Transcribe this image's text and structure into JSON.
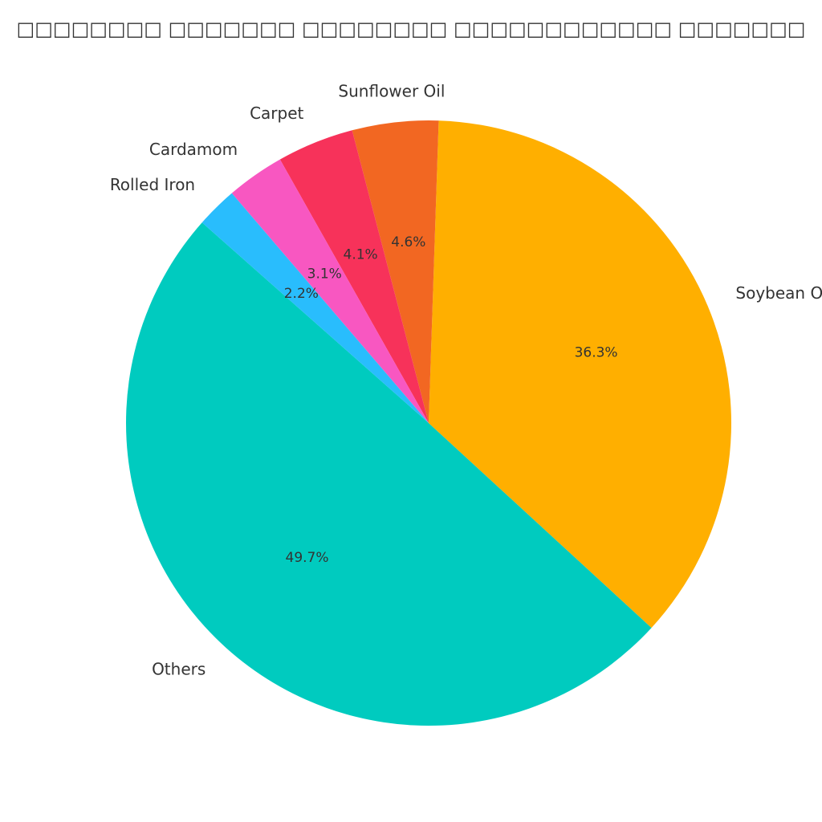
{
  "chart_data": {
    "type": "pie",
    "title": "□□□□□□□□ □□□□□□□ □□□□□□□□ □□□□□□□□□□□□ □□□□□□□",
    "slices": [
      {
        "label": "Others",
        "value": 49.7,
        "pct_label": "49.7%",
        "color": "#00CBBF"
      },
      {
        "label": "Soybean Oil",
        "value": 36.3,
        "pct_label": "36.3%",
        "color": "#FFAF00"
      },
      {
        "label": "Sunflower Oil",
        "value": 4.6,
        "pct_label": "4.6%",
        "color": "#F26722"
      },
      {
        "label": "Carpet",
        "value": 4.1,
        "pct_label": "4.1%",
        "color": "#F7325A"
      },
      {
        "label": "Cardamom",
        "value": 3.1,
        "pct_label": "3.1%",
        "color": "#F857C1"
      },
      {
        "label": "Rolled Iron",
        "value": 2.2,
        "pct_label": "2.2%",
        "color": "#29BDFD"
      }
    ]
  }
}
